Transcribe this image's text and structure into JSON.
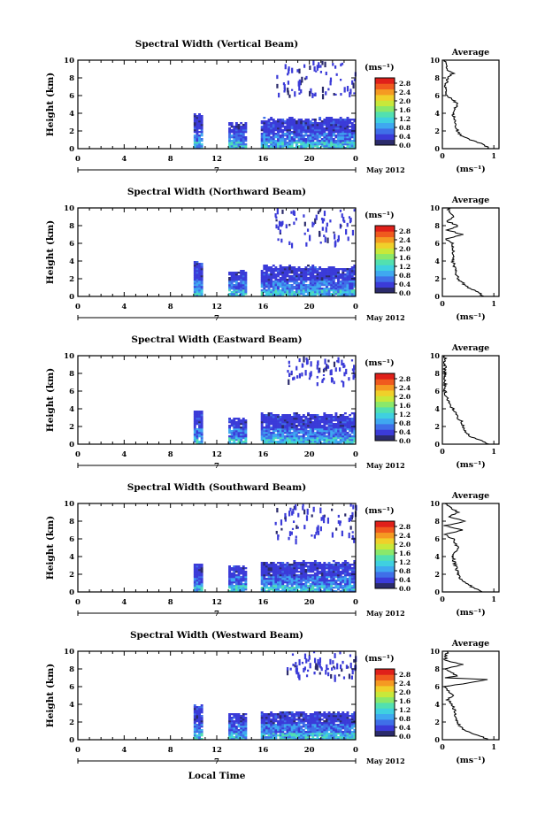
{
  "figure": {
    "x_axis_label": "Local Time",
    "date_label": "May 2012",
    "day_label": "7",
    "avg_title": "Average",
    "unit_label": "(ms⁻¹)",
    "x_ticks": [
      "0",
      "4",
      "8",
      "12",
      "16",
      "20",
      "0"
    ],
    "y_ticks": [
      "0",
      "2",
      "4",
      "6",
      "8",
      "10"
    ],
    "colorbar_ticks": [
      "0.0",
      "0.4",
      "0.8",
      "1.2",
      "1.6",
      "2.0",
      "2.4",
      "2.8"
    ],
    "avg_x_ticks": [
      "0",
      "1"
    ],
    "colorscale": [
      "#2b2b6b",
      "#3b3bd8",
      "#3f6fe8",
      "#3fa8f0",
      "#3fd0e0",
      "#52e0b0",
      "#8ae86a",
      "#c8e83a",
      "#f0d02a",
      "#f59a22",
      "#f05a1e",
      "#e0201a"
    ]
  },
  "chart_data": [
    {
      "type": "heatmap",
      "title": "Spectral Width (Vertical Beam)",
      "ylabel": "Height (km)",
      "xlim": [
        0,
        24
      ],
      "ylim": [
        0,
        10
      ],
      "clim": [
        0,
        2.8
      ],
      "data_blocks": [
        [
          10,
          10.8,
          0,
          4
        ],
        [
          13,
          14.6,
          0,
          3
        ],
        [
          15.8,
          24,
          0,
          3.5
        ]
      ],
      "upper_echo": [
        [
          17,
          24,
          6,
          10
        ]
      ],
      "profile": {
        "height": [
          0,
          0.5,
          1,
          1.5,
          2,
          3,
          4,
          5,
          6,
          7,
          8,
          8.5,
          9,
          10
        ],
        "value": [
          0.9,
          0.8,
          0.55,
          0.35,
          0.3,
          0.25,
          0.2,
          0.3,
          0.1,
          0.05,
          0.1,
          0.2,
          0.1,
          0.05
        ]
      },
      "avg_xlim": [
        0,
        1.1
      ]
    },
    {
      "type": "heatmap",
      "title": "Spectral Width (Northward Beam)",
      "ylabel": "Height (km)",
      "xlim": [
        0,
        24
      ],
      "ylim": [
        0,
        10
      ],
      "clim": [
        0,
        2.8
      ],
      "data_blocks": [
        [
          10,
          10.8,
          0,
          4
        ],
        [
          13,
          14.6,
          0,
          3
        ],
        [
          15.8,
          24,
          0,
          3.5
        ]
      ],
      "upper_echo": [
        [
          17,
          24,
          6,
          10
        ]
      ],
      "profile": {
        "height": [
          0,
          0.5,
          1,
          1.5,
          2,
          3,
          4,
          5,
          6,
          6.5,
          7,
          7.5,
          8,
          8.5,
          9,
          10
        ],
        "value": [
          0.8,
          0.7,
          0.5,
          0.4,
          0.3,
          0.25,
          0.2,
          0.22,
          0.2,
          0.05,
          0.4,
          0.1,
          0.3,
          0.08,
          0.2,
          0.1
        ]
      },
      "avg_xlim": [
        0,
        1.1
      ]
    },
    {
      "type": "heatmap",
      "title": "Spectral Width (Eastward Beam)",
      "ylabel": "Height (km)",
      "xlim": [
        0,
        24
      ],
      "ylim": [
        0,
        10
      ],
      "clim": [
        0,
        2.8
      ],
      "data_blocks": [
        [
          10,
          10.8,
          0,
          3.8
        ],
        [
          13,
          14.6,
          0,
          3
        ],
        [
          15.8,
          24,
          0,
          3.5
        ]
      ],
      "upper_echo": [
        [
          18,
          24,
          7,
          10
        ]
      ],
      "profile": {
        "height": [
          0,
          0.5,
          1,
          1.5,
          2,
          2.5,
          3,
          4,
          5,
          6,
          7,
          8,
          10
        ],
        "value": [
          0.9,
          0.7,
          0.5,
          0.45,
          0.4,
          0.38,
          0.3,
          0.2,
          0.1,
          0.05,
          0.05,
          0.05,
          0.05
        ]
      },
      "avg_xlim": [
        0,
        1.1
      ]
    },
    {
      "type": "heatmap",
      "title": "Spectral Width (Southward Beam)",
      "ylabel": "Height (km)",
      "xlim": [
        0,
        24
      ],
      "ylim": [
        0,
        10
      ],
      "clim": [
        0,
        2.8
      ],
      "data_blocks": [
        [
          10,
          10.8,
          0,
          3.2
        ],
        [
          13,
          14.6,
          0,
          3
        ],
        [
          15.8,
          24,
          0,
          3.5
        ]
      ],
      "upper_echo": [
        [
          17,
          24,
          6,
          10
        ]
      ],
      "profile": {
        "height": [
          0,
          0.5,
          1,
          1.5,
          2,
          3,
          4,
          5,
          6,
          6.5,
          7,
          7.5,
          8,
          8.5,
          9,
          10
        ],
        "value": [
          0.8,
          0.6,
          0.45,
          0.35,
          0.3,
          0.25,
          0.2,
          0.3,
          0.2,
          0.05,
          0.4,
          0.05,
          0.45,
          0.1,
          0.3,
          0.05
        ]
      },
      "avg_xlim": [
        0,
        1.1
      ]
    },
    {
      "type": "heatmap",
      "title": "Spectral Width (Westward Beam)",
      "ylabel": "Height (km)",
      "xlim": [
        0,
        24
      ],
      "ylim": [
        0,
        10
      ],
      "clim": [
        0,
        2.8
      ],
      "data_blocks": [
        [
          10,
          10.8,
          0,
          4
        ],
        [
          13,
          14.6,
          0,
          3
        ],
        [
          15.8,
          24,
          0,
          3.2
        ]
      ],
      "upper_echo": [
        [
          18,
          24,
          7,
          10
        ]
      ],
      "profile": {
        "height": [
          0,
          0.5,
          1,
          1.5,
          2,
          3,
          4,
          4.5,
          5,
          6,
          6.8,
          7,
          7.2,
          8,
          8.5,
          9,
          10
        ],
        "value": [
          0.9,
          0.7,
          0.45,
          0.35,
          0.3,
          0.25,
          0.2,
          0.1,
          0.2,
          0.05,
          0.9,
          0.05,
          0.3,
          0.05,
          0.4,
          0.05,
          0.1
        ]
      },
      "avg_xlim": [
        0,
        1.1
      ]
    }
  ]
}
